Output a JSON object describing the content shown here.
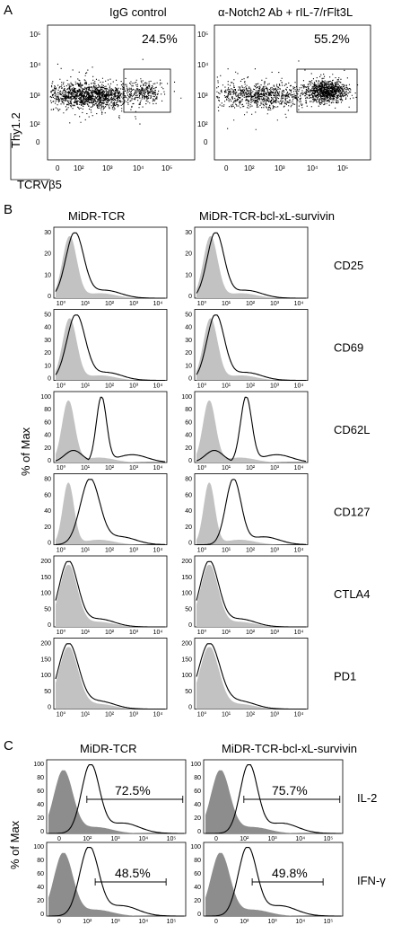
{
  "panelA": {
    "label": "A",
    "y_label": "Thy1.2",
    "x_label": "TCRVβ5",
    "x_ticks": [
      "0",
      "10²",
      "10³",
      "10⁴",
      "10⁵"
    ],
    "y_ticks": [
      "10⁵",
      "10⁴",
      "10³",
      "10²",
      "0"
    ],
    "plots": [
      {
        "title": "IgG control",
        "percent": "24.5%",
        "gate_density": 200,
        "neg_density": 1500
      },
      {
        "title": "α-Notch2 Ab + rIL-7/rFlt3L",
        "percent": "55.2%",
        "gate_density": 900,
        "neg_density": 900
      }
    ]
  },
  "panelB": {
    "label": "B",
    "y_label": "% of Max",
    "columns": [
      "MiDR-TCR",
      "MiDR-TCR-bcl-xL-survivin"
    ],
    "x_ticks": [
      "10⁰",
      "10¹",
      "10²",
      "10³",
      "10⁴"
    ],
    "rows": [
      {
        "marker": "CD25",
        "y_ticks": [
          "30",
          "20",
          "10",
          "0"
        ],
        "ymax": 30,
        "iso": {
          "peak": 0.55,
          "width": 0.28
        },
        "stain": [
          {
            "peak": 0.75,
            "width": 0.35
          },
          {
            "peak": 0.75,
            "width": 0.33
          }
        ]
      },
      {
        "marker": "CD69",
        "y_ticks": [
          "50",
          "40",
          "30",
          "20",
          "10",
          "0"
        ],
        "ymax": 50,
        "iso": {
          "peak": 0.55,
          "width": 0.28
        },
        "stain": [
          {
            "peak": 0.8,
            "width": 0.36
          },
          {
            "peak": 0.75,
            "width": 0.34
          }
        ]
      },
      {
        "marker": "CD62L",
        "y_ticks": [
          "100",
          "80",
          "60",
          "40",
          "20",
          "0"
        ],
        "ymax": 100,
        "iso": {
          "peak": 0.5,
          "width": 0.25
        },
        "stain": [
          {
            "peak": 1.8,
            "width": 0.2
          },
          {
            "peak": 1.95,
            "width": 0.22
          }
        ]
      },
      {
        "marker": "CD127",
        "y_ticks": [
          "80",
          "60",
          "40",
          "20",
          "0"
        ],
        "ymax": 80,
        "iso": {
          "peak": 0.5,
          "width": 0.22
        },
        "stain": [
          {
            "peak": 1.35,
            "width": 0.38
          },
          {
            "peak": 1.45,
            "width": 0.3
          }
        ]
      },
      {
        "marker": "CTLA4",
        "y_ticks": [
          "200",
          "150",
          "100",
          "50",
          "0"
        ],
        "ymax": 200,
        "iso": {
          "peak": 0.5,
          "width": 0.35
        },
        "stain": [
          {
            "peak": 0.5,
            "width": 0.37
          },
          {
            "peak": 0.5,
            "width": 0.37
          }
        ]
      },
      {
        "marker": "PD1",
        "y_ticks": [
          "200",
          "150",
          "100",
          "50",
          "0"
        ],
        "ymax": 200,
        "iso": {
          "peak": 0.5,
          "width": 0.38
        },
        "stain": [
          {
            "peak": 0.5,
            "width": 0.4
          },
          {
            "peak": 0.5,
            "width": 0.42
          }
        ]
      }
    ]
  },
  "panelC": {
    "label": "C",
    "y_label": "% of Max",
    "columns": [
      "MiDR-TCR",
      "MiDR-TCR-bcl-xL-survivin"
    ],
    "x_ticks": [
      "0",
      "10²",
      "10³",
      "10⁴",
      "10⁵"
    ],
    "y_ticks": [
      "100",
      "80",
      "60",
      "40",
      "20",
      "0"
    ],
    "rows": [
      {
        "marker": "IL-2",
        "percents": [
          "72.5%",
          "75.7%"
        ]
      },
      {
        "marker": "IFN-γ",
        "percents": [
          "48.5%",
          "49.8%"
        ]
      }
    ]
  }
}
